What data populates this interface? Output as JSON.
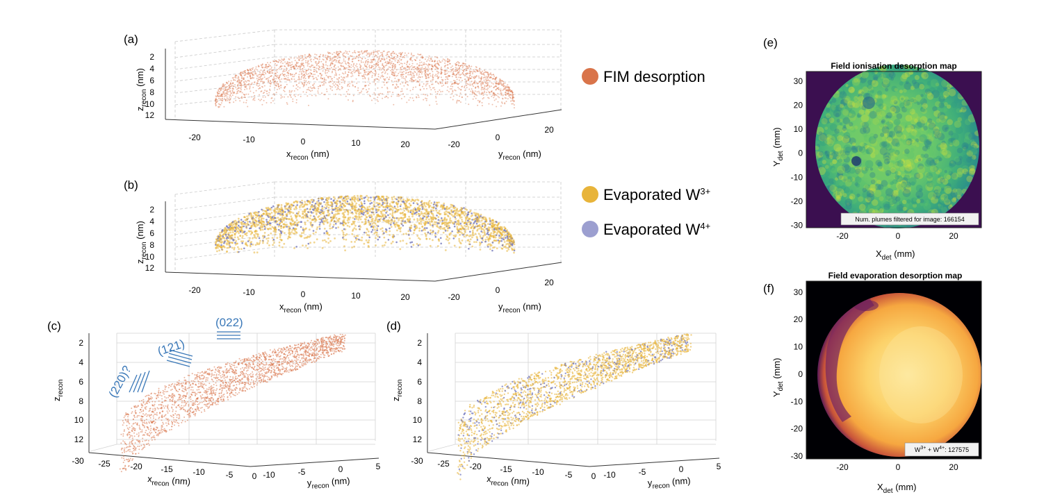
{
  "colors": {
    "fim": "#d9744a",
    "w3": "#e8b43a",
    "w4": "#7b7fc0",
    "plane": "#3a78b8",
    "viridis_bg": "#3b0f50"
  },
  "legend": {
    "fim": "FIM desorption",
    "w3_prefix": "Evaporated W",
    "w3_sup": "3+",
    "w4_prefix": "Evaporated W",
    "w4_sup": "4+"
  },
  "chart_data": [
    {
      "panel": "(a)",
      "type": "scatter",
      "dims": 3,
      "series_name": "FIM desorption",
      "xlabel_main": "x",
      "xlabel_sub": "recon",
      "xlabel_unit": " (nm)",
      "ylabel_main": "y",
      "ylabel_sub": "recon",
      "ylabel_unit": " (nm)",
      "zlabel_main": "z",
      "zlabel_sub": "recon",
      "zlabel_unit": " (nm)",
      "x_ticks": [
        "-20",
        "-10",
        "0",
        "10",
        "20"
      ],
      "y_ticks": [
        "-20",
        "0",
        "20"
      ],
      "z_ticks": [
        "2",
        "4",
        "6",
        "8",
        "10",
        "12"
      ],
      "shape": "spherical cap, apex near z=1 nm at x,y=0, base near z=10 nm at |x|≈25 nm"
    },
    {
      "panel": "(b)",
      "type": "scatter",
      "dims": 3,
      "series": [
        {
          "name": "Evaporated W3+"
        },
        {
          "name": "Evaporated W4+"
        }
      ],
      "xlabel_main": "x",
      "xlabel_sub": "recon",
      "xlabel_unit": " (nm)",
      "ylabel_main": "y",
      "ylabel_sub": "recon",
      "ylabel_unit": " (nm)",
      "zlabel_main": "z",
      "zlabel_sub": "recon",
      "zlabel_unit": " (nm)",
      "x_ticks": [
        "-20",
        "-10",
        "0",
        "10",
        "20"
      ],
      "y_ticks": [
        "-20",
        "0",
        "20"
      ],
      "z_ticks": [
        "2",
        "4",
        "6",
        "8",
        "10",
        "12"
      ]
    },
    {
      "panel": "(c)",
      "type": "scatter",
      "dims": 3,
      "series_name": "FIM desorption",
      "xlabel_main": "x",
      "xlabel_sub": "recon",
      "xlabel_unit": " (nm)",
      "ylabel_main": "y",
      "ylabel_sub": "recon",
      "ylabel_unit": " (nm)",
      "zlabel_main": "z",
      "zlabel_sub": "recon",
      "x_ticks": [
        "-30",
        "-25",
        "-20",
        "-15",
        "-10",
        "-5",
        "0"
      ],
      "y_ticks": [
        "-10",
        "-5",
        "0",
        "5"
      ],
      "z_ticks": [
        "2",
        "4",
        "6",
        "8",
        "10",
        "12"
      ],
      "annotations": [
        "(022)",
        "(121)",
        "(220)?"
      ]
    },
    {
      "panel": "(d)",
      "type": "scatter",
      "dims": 3,
      "series": [
        {
          "name": "Evaporated W3+"
        },
        {
          "name": "Evaporated W4+"
        }
      ],
      "xlabel_main": "x",
      "xlabel_sub": "recon",
      "xlabel_unit": " (nm)",
      "ylabel_main": "y",
      "ylabel_sub": "recon",
      "ylabel_unit": " (nm)",
      "zlabel_main": "z",
      "zlabel_sub": "recon",
      "x_ticks": [
        "-30",
        "-25",
        "-20",
        "-15",
        "-10",
        "-5",
        "0"
      ],
      "y_ticks": [
        "-10",
        "-5",
        "0",
        "5"
      ],
      "z_ticks": [
        "2",
        "4",
        "6",
        "8",
        "10",
        "12"
      ]
    },
    {
      "panel": "(e)",
      "type": "heatmap",
      "colormap": "viridis",
      "title": "Field ionisation desorption map",
      "xlabel_main": "X",
      "xlabel_sub": "det",
      "xlabel_unit": " (mm)",
      "ylabel_main": "Y",
      "ylabel_sub": "det",
      "ylabel_unit": " (mm)",
      "xlim": [
        -33,
        30
      ],
      "ylim": [
        -31,
        34
      ],
      "x_ticks": [
        -20,
        0,
        20
      ],
      "y_ticks": [
        30,
        20,
        10,
        0,
        -10,
        -20,
        -30
      ],
      "detector_radius_mm": 31,
      "annotation": "Num. plumes filtered for image: 166154"
    },
    {
      "panel": "(f)",
      "type": "heatmap",
      "colormap": "inferno",
      "title": "Field evaporation desorption map",
      "xlabel_main": "X",
      "xlabel_sub": "det",
      "xlabel_unit": " (mm)",
      "ylabel_main": "Y",
      "ylabel_sub": "det",
      "ylabel_unit": " (mm)",
      "xlim": [
        -33,
        30
      ],
      "ylim": [
        -31,
        34
      ],
      "x_ticks": [
        -20,
        0,
        20
      ],
      "y_ticks": [
        30,
        20,
        10,
        0,
        -10,
        -20,
        -30
      ],
      "detector_radius_mm": 31,
      "annotation_parts": [
        "W",
        "3+",
        " + W",
        "4+",
        ": 127575"
      ]
    }
  ]
}
